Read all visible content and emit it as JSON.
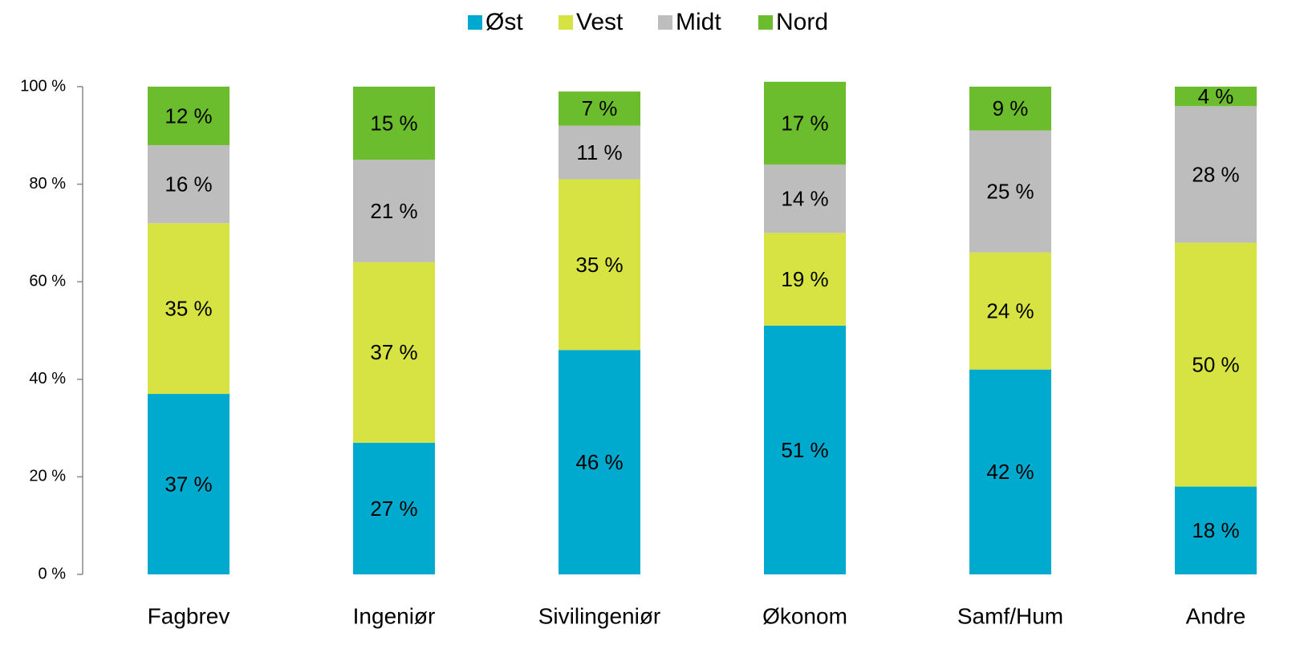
{
  "chart_data": {
    "type": "bar",
    "stacked": true,
    "categories": [
      "Fagbrev",
      "Ingeniør",
      "Sivilingeniør",
      "Økonom",
      "Samf/Hum",
      "Andre"
    ],
    "series": [
      {
        "name": "Øst",
        "color": "#00aacf",
        "values": [
          37,
          27,
          46,
          51,
          42,
          18
        ],
        "value_labels": [
          "37 %",
          "27 %",
          "46 %",
          "51 %",
          "42 %",
          "18 %"
        ]
      },
      {
        "name": "Vest",
        "color": "#d6e342",
        "values": [
          35,
          37,
          35,
          19,
          24,
          50
        ],
        "value_labels": [
          "35 %",
          "37 %",
          "35 %",
          "19 %",
          "24 %",
          "50 %"
        ]
      },
      {
        "name": "Midt",
        "color": "#bdbdbd",
        "values": [
          16,
          21,
          11,
          14,
          25,
          28
        ],
        "value_labels": [
          "16 %",
          "21 %",
          "11 %",
          "14 %",
          "25 %",
          "28 %"
        ]
      },
      {
        "name": "Nord",
        "color": "#6cbd2d",
        "values": [
          12,
          15,
          7,
          17,
          9,
          4
        ],
        "value_labels": [
          "12 %",
          "15 %",
          "7 %",
          "17 %",
          "9 %",
          "4 %"
        ]
      }
    ],
    "ylim": [
      0,
      100
    ],
    "yticks": [
      {
        "value": 0,
        "label": "0 %"
      },
      {
        "value": 20,
        "label": "20 %"
      },
      {
        "value": 40,
        "label": "40 %"
      },
      {
        "value": 60,
        "label": "60 %"
      },
      {
        "value": 80,
        "label": "80 %"
      },
      {
        "value": 100,
        "label": "100 %"
      }
    ],
    "legend": "top",
    "grid": false
  }
}
